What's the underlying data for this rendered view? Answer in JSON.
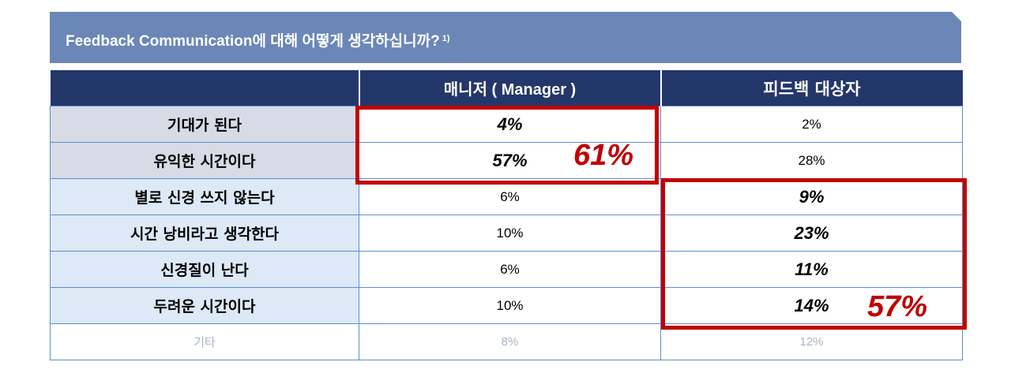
{
  "banner": {
    "title": "Feedback Communication에 대해 어떻게 생각하십니까?",
    "footnote": "1)"
  },
  "table": {
    "headers": [
      "",
      "매니저 ( Manager )",
      "피드백 대상자"
    ],
    "rows": [
      {
        "label": "기대가 된다",
        "manager": "4%",
        "target": "2%"
      },
      {
        "label": "유익한 시간이다",
        "manager": "57%",
        "target": "28%"
      },
      {
        "label": "별로 신경 쓰지 않는다",
        "manager": "6%",
        "target": "9%"
      },
      {
        "label": "시간 낭비라고 생각한다",
        "manager": "10%",
        "target": "23%"
      },
      {
        "label": "신경질이 난다",
        "manager": "6%",
        "target": "11%"
      },
      {
        "label": "두려운 시간이다",
        "manager": "10%",
        "target": "14%"
      },
      {
        "label": "기타",
        "manager": "8%",
        "target": "12%"
      }
    ]
  },
  "highlights": {
    "manager_total": "61%",
    "target_total": "57%",
    "color": "#c00000"
  }
}
